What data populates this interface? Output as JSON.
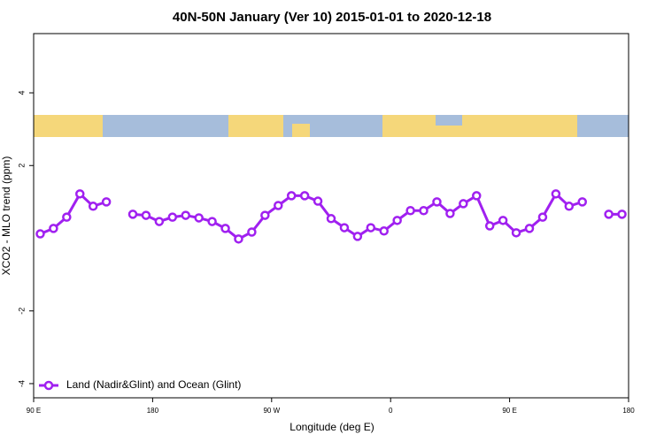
{
  "chart_data": {
    "type": "line",
    "title": "40N-50N January (Ver 10)   2015-01-01 to 2020-12-18",
    "x_label": "Longitude (deg E)",
    "y_label": "XCO2 - MLO trend (ppm)",
    "x": [
      95,
      105,
      115,
      125,
      135,
      145,
      155,
      165,
      175,
      185,
      195,
      205,
      215,
      225,
      235,
      245,
      255,
      265,
      275,
      285,
      295,
      305,
      315,
      325,
      335,
      345,
      355,
      365,
      375,
      385,
      395,
      405,
      415,
      425,
      435,
      445,
      455,
      465,
      475,
      485,
      495,
      505,
      515,
      525,
      535
    ],
    "series": [
      {
        "name": "Land (Nadir&Glint) and Ocean (Glint)",
        "color": "#a020f0",
        "values": [
          0.12,
          0.27,
          0.58,
          1.22,
          0.88,
          1.0,
          null,
          0.66,
          0.63,
          0.46,
          0.58,
          0.63,
          0.56,
          0.46,
          0.27,
          -0.02,
          0.17,
          0.63,
          0.9,
          1.17,
          1.17,
          1.02,
          0.54,
          0.29,
          0.05,
          0.29,
          0.2,
          0.49,
          0.76,
          0.76,
          1.0,
          0.68,
          0.95,
          1.17,
          0.34,
          0.49,
          0.15,
          0.27,
          0.58,
          1.22,
          0.88,
          1.0,
          null,
          0.66,
          0.66
        ]
      }
    ],
    "xlim": [
      90,
      540
    ],
    "xticks": [
      {
        "value": 90,
        "label": "90 E"
      },
      180,
      {
        "value": 270,
        "label": "90 W"
      },
      {
        "value": 360,
        "label": "0"
      },
      {
        "value": 450,
        "label": "90 E"
      },
      {
        "value": 540,
        "label": "180"
      }
    ],
    "ylim": [
      -4.39,
      5.63
    ],
    "yticks": [
      -4,
      -2,
      2,
      4
    ],
    "legend": "bottom-left"
  }
}
